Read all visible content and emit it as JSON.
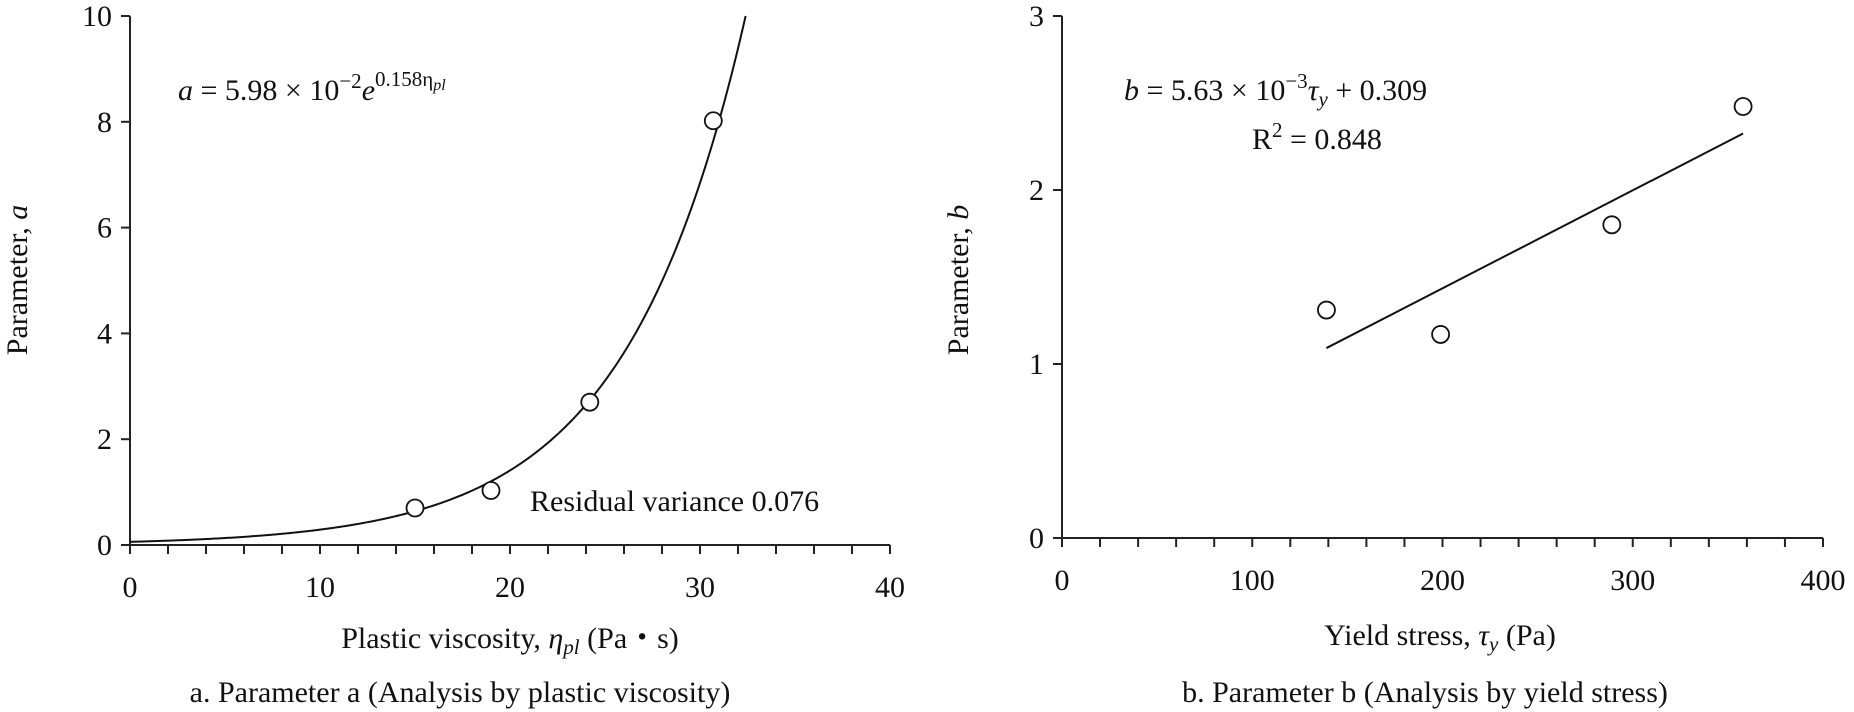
{
  "chart_data": [
    {
      "type": "scatter",
      "xlabel": "Plastic viscosity, ηpl (Pa・s)",
      "xlabel_parts": {
        "main": "Plastic viscosity, ",
        "symbol": "η",
        "sub": "pl",
        "unit": " (Pa・s)"
      },
      "ylabel": "Parameter, a",
      "ylabel_parts": {
        "main": "Parameter, ",
        "symbol": "a"
      },
      "caption": "a. Parameter a (Analysis by plastic viscosity)",
      "xlim": [
        0,
        40
      ],
      "ylim": [
        0,
        10
      ],
      "x_ticks": [
        "0",
        "10",
        "20",
        "30",
        "40"
      ],
      "y_ticks": [
        "0",
        "2",
        "4",
        "6",
        "8",
        "10"
      ],
      "x_minor_step": 2,
      "series": [
        {
          "points": [
            [
              15.0,
              0.7
            ],
            [
              19.0,
              1.03
            ],
            [
              24.2,
              2.7
            ],
            [
              30.7,
              8.02
            ]
          ]
        }
      ],
      "fit": {
        "type": "exponential",
        "coef": 0.0598,
        "rate": 0.158
      },
      "annotations": {
        "equation": "a = 5.98 × 10−2e0.158ηpl",
        "equation_parts": {
          "lhs": "a",
          "body": " = 5.98 × 10",
          "exp1": "−2",
          "e": "e",
          "exp2": "0.158η",
          "exp2_sub": "pl"
        },
        "residual": "Residual variance 0.076"
      },
      "grid": false
    },
    {
      "type": "scatter",
      "xlabel": "Yield stress, τy (Pa)",
      "xlabel_parts": {
        "main": "Yield stress, ",
        "symbol": "τ",
        "sub": "y",
        "unit": " (Pa)"
      },
      "ylabel": "Parameter, b",
      "ylabel_parts": {
        "main": "Parameter, ",
        "symbol": "b"
      },
      "caption": "b. Parameter b (Analysis by yield stress)",
      "xlim": [
        0,
        400
      ],
      "ylim": [
        0,
        3
      ],
      "x_ticks": [
        "0",
        "100",
        "200",
        "300",
        "400"
      ],
      "y_ticks": [
        "0",
        "1",
        "2",
        "3"
      ],
      "x_minor_step": 20,
      "series": [
        {
          "points": [
            [
              139,
              1.31
            ],
            [
              199,
              1.17
            ],
            [
              289,
              1.8
            ],
            [
              358,
              2.48
            ]
          ]
        }
      ],
      "fit": {
        "type": "linear",
        "slope": 0.00563,
        "intercept": 0.309,
        "x_range": [
          139,
          358
        ]
      },
      "annotations": {
        "equation": "b = 5.63 × 10−3τy + 0.309",
        "equation_parts": {
          "lhs": "b",
          "body": " = 5.63 × 10",
          "exp1": "−3",
          "tau": "τ",
          "tau_sub": "y",
          "tail": " + 0.309"
        },
        "r2": "R2 = 0.848",
        "r2_parts": {
          "r": "R",
          "sup": "2",
          "rest": " = 0.848"
        }
      },
      "grid": false
    }
  ]
}
